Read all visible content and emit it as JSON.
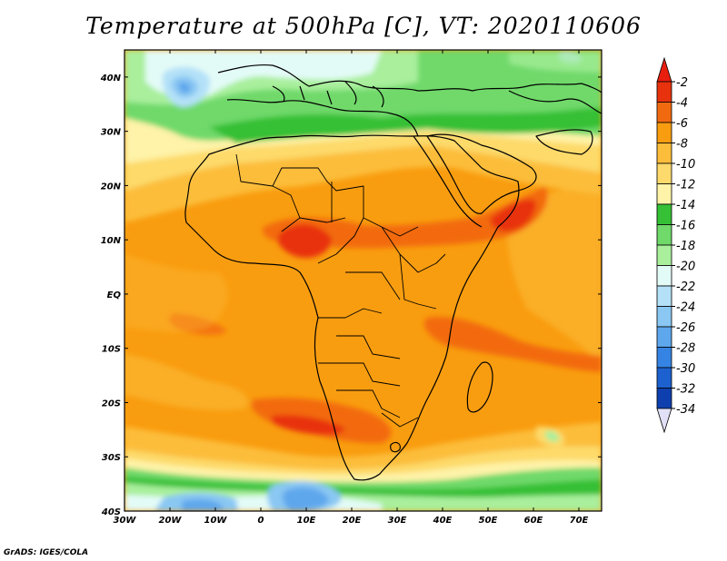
{
  "title": "Temperature at 500hPa [C], VT: 2020110606",
  "credit": "GrADS: IGES/COLA",
  "map": {
    "lon_range": [
      -30,
      75
    ],
    "lat_range": [
      -40,
      45
    ],
    "x_ticks": [
      {
        "lon": -30,
        "label": "30W"
      },
      {
        "lon": -20,
        "label": "20W"
      },
      {
        "lon": -10,
        "label": "10W"
      },
      {
        "lon": 0,
        "label": "0"
      },
      {
        "lon": 10,
        "label": "10E"
      },
      {
        "lon": 20,
        "label": "20E"
      },
      {
        "lon": 30,
        "label": "30E"
      },
      {
        "lon": 40,
        "label": "40E"
      },
      {
        "lon": 50,
        "label": "50E"
      },
      {
        "lon": 60,
        "label": "60E"
      },
      {
        "lon": 70,
        "label": "70E"
      }
    ],
    "y_ticks": [
      {
        "lat": 40,
        "label": "40N"
      },
      {
        "lat": 30,
        "label": "30N"
      },
      {
        "lat": 20,
        "label": "20N"
      },
      {
        "lat": 10,
        "label": "10N"
      },
      {
        "lat": 0,
        "label": "EQ"
      },
      {
        "lat": -10,
        "label": "10S"
      },
      {
        "lat": -20,
        "label": "20S"
      },
      {
        "lat": -30,
        "label": "30S"
      },
      {
        "lat": -40,
        "label": "40S"
      }
    ]
  },
  "colorbar": {
    "levels": [
      "-2",
      "-4",
      "-6",
      "-8",
      "-10",
      "-12",
      "-14",
      "-16",
      "-18",
      "-20",
      "-22",
      "-24",
      "-26",
      "-28",
      "-30",
      "-32",
      "-34"
    ],
    "colors": [
      "#e8320e",
      "#f26a10",
      "#f99d10",
      "#fcbd3b",
      "#fdda6b",
      "#fef3a8",
      "#35c035",
      "#6fd96a",
      "#a9ef9c",
      "#e3fbf7",
      "#b4e1f8",
      "#8ac7f3",
      "#5ea7ec",
      "#3584e3",
      "#1c61cf",
      "#0e3fae",
      "#0a1c76"
    ],
    "top_color": "#e81e0e",
    "bottom_color": "#e0e0f6"
  }
}
